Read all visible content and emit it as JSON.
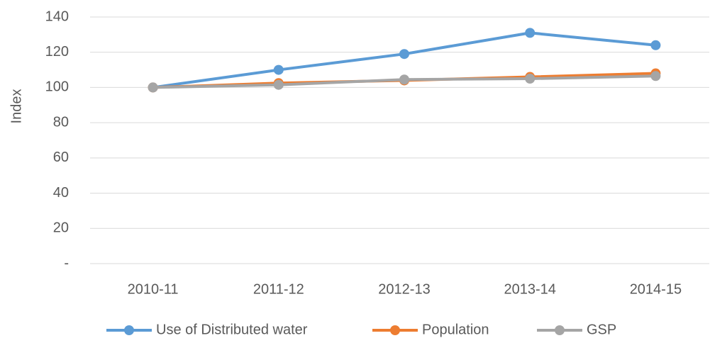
{
  "chart_data": {
    "type": "line",
    "y_label": "Index",
    "categories": [
      "2010-11",
      "2011-12",
      "2012-13",
      "2013-14",
      "2014-15"
    ],
    "series": [
      {
        "name": "Use of Distributed water",
        "color": "#5b9bd5",
        "values": [
          100,
          110,
          119,
          131,
          124
        ]
      },
      {
        "name": "Population",
        "color": "#ed7d31",
        "values": [
          100,
          102.5,
          104,
          106,
          108
        ]
      },
      {
        "name": "GSP",
        "color": "#a5a5a5",
        "values": [
          100,
          101.5,
          104.5,
          105,
          106.5
        ]
      }
    ],
    "ylim": [
      0,
      140
    ],
    "yticks": [
      {
        "value": 0,
        "label": "-"
      },
      20,
      40,
      60,
      80,
      100,
      120,
      140
    ],
    "grid": true,
    "legend": "bottom"
  }
}
